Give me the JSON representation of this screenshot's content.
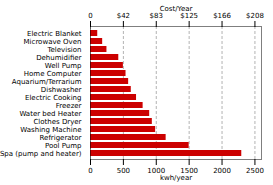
{
  "chart_data": {
    "type": "bar",
    "orientation": "horizontal",
    "categories": [
      "Spa (pump and heater)",
      "Pool Pump",
      "Refrigerator",
      "Washing Machine",
      "Clothes Dryer",
      "Water bed Heater",
      "Freezer",
      "Electric Cooking",
      "Dishwasher",
      "Aquarium/Terrarium",
      "Home Computer",
      "Well Pump",
      "Dehumidifier",
      "Television",
      "Microwave Oven",
      "Electric Blanket"
    ],
    "values": [
      2300,
      1500,
      1150,
      990,
      940,
      900,
      800,
      700,
      620,
      580,
      540,
      500,
      430,
      250,
      185,
      110
    ],
    "color": "#cc0000",
    "xlabel": "kwh/year",
    "x2label": "Cost/Year",
    "xlim": [
      0,
      2600
    ],
    "xticks": [
      0,
      500,
      1000,
      1500,
      2000,
      2500
    ],
    "x2ticks": [
      0,
      {
        "value": 500,
        "label": "$42"
      },
      {
        "value": 1000,
        "label": "$83"
      },
      {
        "value": 1500,
        "label": "$125"
      },
      {
        "value": 2000,
        "label": "$166"
      },
      {
        "value": 2500,
        "label": "$208"
      }
    ],
    "grid": true
  }
}
